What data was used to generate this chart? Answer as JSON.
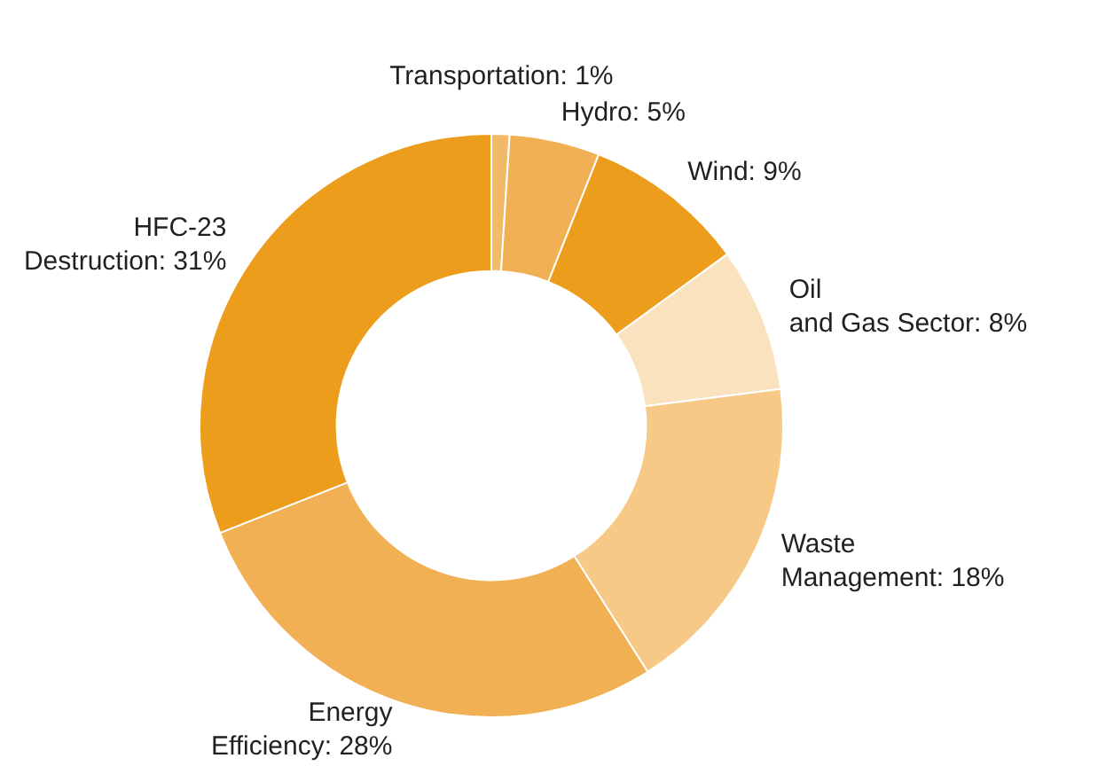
{
  "chart_data": {
    "type": "donut",
    "categories": [
      "Transportation",
      "Hydro",
      "Wind",
      "Oil and Gas Sector",
      "Waste Management",
      "Energy Efficiency",
      "HFC-23 Destruction"
    ],
    "values": [
      1,
      5,
      9,
      8,
      18,
      28,
      31
    ],
    "colors": [
      "#f2b968",
      "#f2b055",
      "#ec9d1c",
      "#fae2bf",
      "#f6ca86",
      "#f2b055",
      "#ec9d1c"
    ],
    "value_labels": [
      "1%",
      "5%",
      "9%",
      "8%",
      "18%",
      "28%",
      "31%"
    ],
    "legend": false
  }
}
